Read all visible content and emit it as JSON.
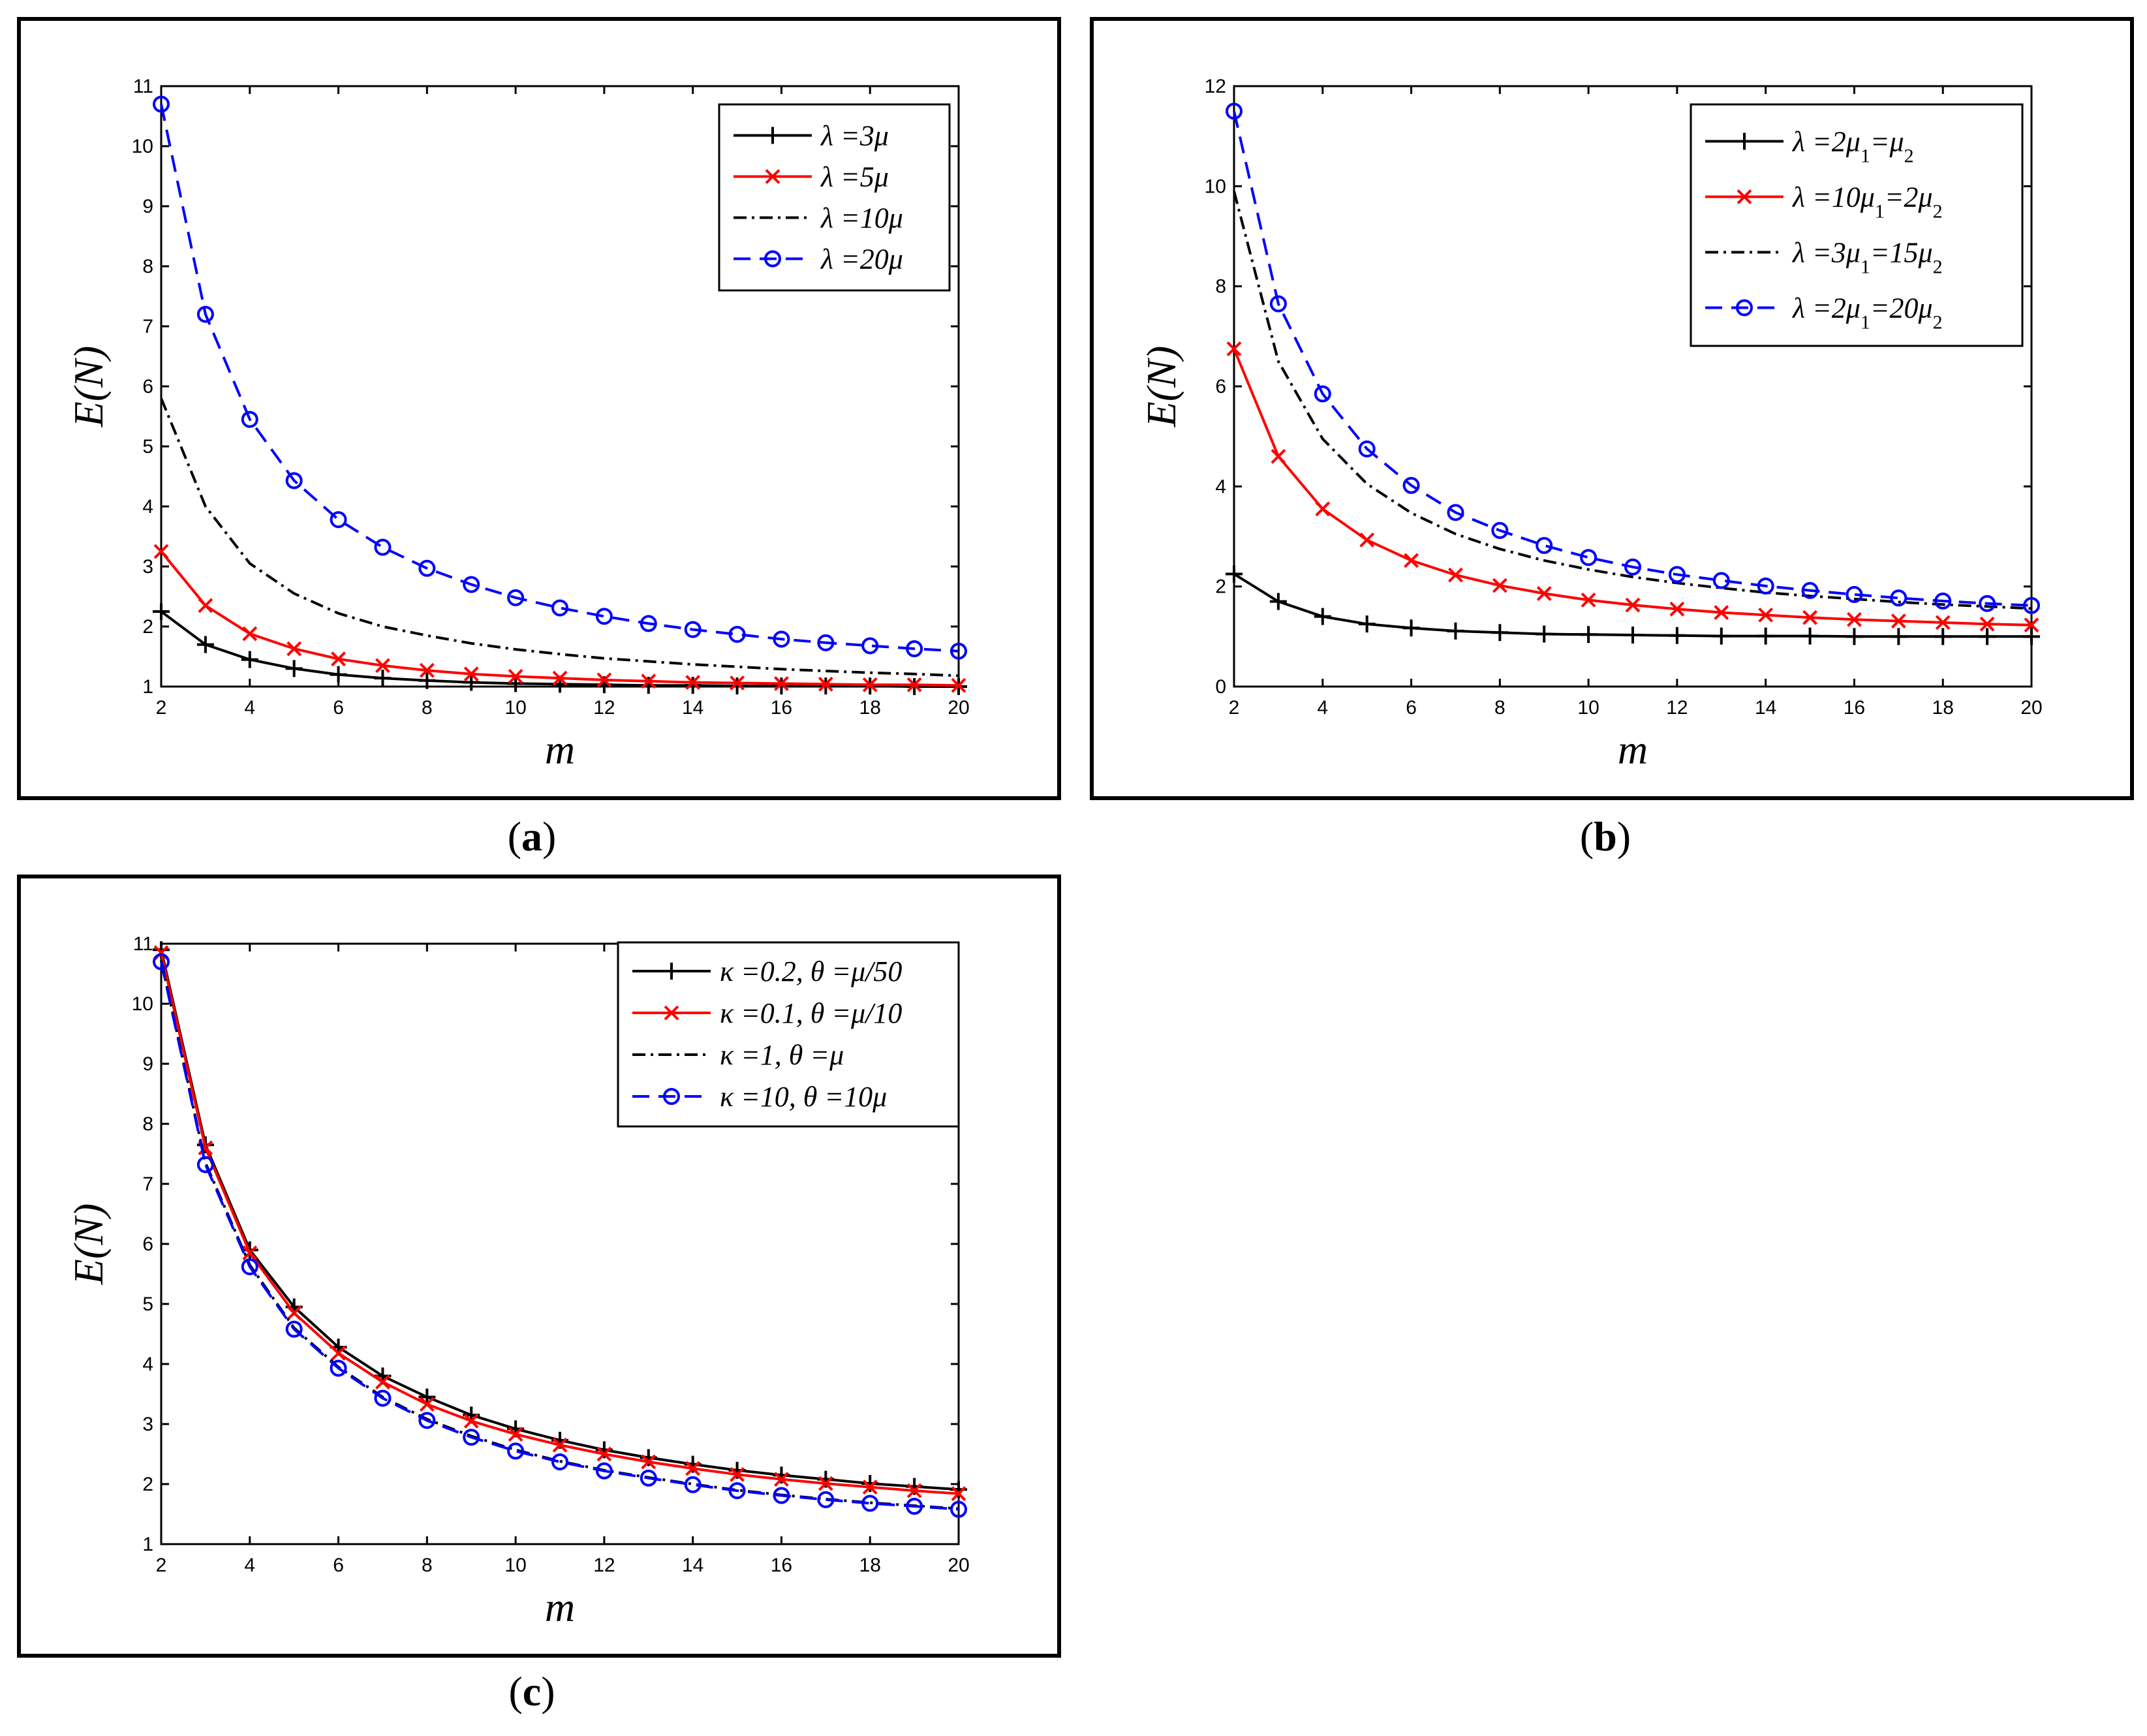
{
  "captions": {
    "a": "a",
    "b": "b",
    "c": "c"
  },
  "chart_data": [
    {
      "id": "a",
      "type": "line",
      "title": "",
      "xlabel": "m",
      "ylabel": "E(N)",
      "xlim": [
        2,
        20
      ],
      "ylim": [
        1,
        11
      ],
      "xticks": [
        2,
        4,
        6,
        8,
        10,
        12,
        14,
        16,
        18,
        20
      ],
      "yticks": [
        1,
        2,
        3,
        4,
        5,
        6,
        7,
        8,
        9,
        10,
        11
      ],
      "legend_position": "top-right",
      "x": [
        2,
        3,
        4,
        5,
        6,
        7,
        8,
        9,
        10,
        11,
        12,
        13,
        14,
        15,
        16,
        17,
        18,
        19,
        20
      ],
      "series": [
        {
          "name": "λ =3μ",
          "color": "#000000",
          "marker": "plus",
          "dash": "solid",
          "values": [
            2.25,
            1.7,
            1.45,
            1.3,
            1.2,
            1.14,
            1.1,
            1.07,
            1.05,
            1.04,
            1.03,
            1.02,
            1.02,
            1.01,
            1.01,
            1.01,
            1.01,
            1.0,
            1.0
          ]
        },
        {
          "name": "λ =5μ",
          "color": "#ff0000",
          "marker": "x",
          "dash": "solid",
          "values": [
            3.25,
            2.35,
            1.88,
            1.63,
            1.46,
            1.35,
            1.27,
            1.21,
            1.17,
            1.14,
            1.11,
            1.09,
            1.07,
            1.06,
            1.05,
            1.04,
            1.03,
            1.03,
            1.02
          ]
        },
        {
          "name": "λ =10μ",
          "color": "#000000",
          "marker": "none",
          "dash": "dashdot",
          "values": [
            5.8,
            4.0,
            3.05,
            2.55,
            2.22,
            2.0,
            1.85,
            1.72,
            1.62,
            1.54,
            1.47,
            1.42,
            1.37,
            1.33,
            1.29,
            1.26,
            1.23,
            1.21,
            1.18
          ]
        },
        {
          "name": "λ =20μ",
          "color": "#0000ff",
          "marker": "circle",
          "dash": "dashed",
          "values": [
            10.7,
            7.2,
            5.45,
            4.43,
            3.78,
            3.32,
            2.97,
            2.7,
            2.48,
            2.31,
            2.17,
            2.05,
            1.95,
            1.87,
            1.79,
            1.73,
            1.68,
            1.63,
            1.59
          ]
        }
      ]
    },
    {
      "id": "b",
      "type": "line",
      "title": "",
      "xlabel": "m",
      "ylabel": "E(N)",
      "xlim": [
        2,
        20
      ],
      "ylim": [
        0,
        12
      ],
      "xticks": [
        2,
        4,
        6,
        8,
        10,
        12,
        14,
        16,
        18,
        20
      ],
      "yticks": [
        0,
        2,
        4,
        6,
        8,
        10,
        12
      ],
      "legend_position": "top-right",
      "x": [
        2,
        3,
        4,
        5,
        6,
        7,
        8,
        9,
        10,
        11,
        12,
        13,
        14,
        15,
        16,
        17,
        18,
        19,
        20
      ],
      "series": [
        {
          "name": "λ =2μ1=μ2",
          "color": "#000000",
          "marker": "plus",
          "dash": "solid",
          "values": [
            2.25,
            1.7,
            1.4,
            1.25,
            1.17,
            1.11,
            1.08,
            1.05,
            1.04,
            1.03,
            1.02,
            1.01,
            1.01,
            1.01,
            1.0,
            1.0,
            1.0,
            1.0,
            1.0
          ]
        },
        {
          "name": "λ =10μ1=2μ2",
          "color": "#ff0000",
          "marker": "x",
          "dash": "solid",
          "values": [
            6.75,
            4.6,
            3.55,
            2.93,
            2.52,
            2.23,
            2.02,
            1.86,
            1.73,
            1.63,
            1.55,
            1.48,
            1.43,
            1.38,
            1.34,
            1.31,
            1.28,
            1.25,
            1.23
          ]
        },
        {
          "name": "λ =3μ1=15μ2",
          "color": "#000000",
          "marker": "none",
          "dash": "dashdot",
          "values": [
            9.9,
            6.5,
            4.95,
            4.05,
            3.47,
            3.05,
            2.75,
            2.52,
            2.34,
            2.19,
            2.07,
            1.97,
            1.88,
            1.81,
            1.75,
            1.69,
            1.64,
            1.6,
            1.56
          ]
        },
        {
          "name": "λ =2μ1=20μ2",
          "color": "#0000ff",
          "marker": "circle",
          "dash": "dashed",
          "values": [
            11.5,
            7.65,
            5.85,
            4.75,
            4.02,
            3.48,
            3.12,
            2.82,
            2.58,
            2.39,
            2.24,
            2.12,
            2.01,
            1.92,
            1.84,
            1.77,
            1.71,
            1.66,
            1.62
          ]
        }
      ]
    },
    {
      "id": "c",
      "type": "line",
      "title": "",
      "xlabel": "m",
      "ylabel": "E(N)",
      "xlim": [
        2,
        20
      ],
      "ylim": [
        1,
        11
      ],
      "xticks": [
        2,
        4,
        6,
        8,
        10,
        12,
        14,
        16,
        18,
        20
      ],
      "yticks": [
        1,
        2,
        3,
        4,
        5,
        6,
        7,
        8,
        9,
        10,
        11
      ],
      "legend_position": "top-right",
      "x": [
        2,
        3,
        4,
        5,
        6,
        7,
        8,
        9,
        10,
        11,
        12,
        13,
        14,
        15,
        16,
        17,
        18,
        19,
        20
      ],
      "series": [
        {
          "name": "κ =0.2, θ =μ/50",
          "color": "#000000",
          "marker": "plus",
          "dash": "solid",
          "values": [
            10.9,
            7.65,
            5.9,
            4.95,
            4.28,
            3.8,
            3.45,
            3.15,
            2.92,
            2.73,
            2.57,
            2.44,
            2.33,
            2.23,
            2.15,
            2.08,
            2.01,
            1.96,
            1.91
          ]
        },
        {
          "name": "κ =0.1, θ =μ/10",
          "color": "#ff0000",
          "marker": "x",
          "dash": "solid",
          "values": [
            10.85,
            7.6,
            5.85,
            4.85,
            4.18,
            3.7,
            3.33,
            3.05,
            2.83,
            2.65,
            2.5,
            2.37,
            2.26,
            2.16,
            2.08,
            2.01,
            1.95,
            1.89,
            1.84
          ]
        },
        {
          "name": "κ =1, θ =μ",
          "color": "#000000",
          "marker": "none",
          "dash": "dashdot",
          "values": [
            10.72,
            7.35,
            5.65,
            4.6,
            3.95,
            3.45,
            3.08,
            2.8,
            2.57,
            2.38,
            2.23,
            2.11,
            2.0,
            1.9,
            1.82,
            1.75,
            1.69,
            1.64,
            1.59
          ]
        },
        {
          "name": "κ =10, θ =10μ",
          "color": "#0000ff",
          "marker": "circle",
          "dash": "dashed",
          "values": [
            10.7,
            7.32,
            5.62,
            4.58,
            3.93,
            3.43,
            3.06,
            2.78,
            2.55,
            2.37,
            2.22,
            2.1,
            1.99,
            1.89,
            1.81,
            1.74,
            1.68,
            1.63,
            1.58
          ]
        }
      ]
    }
  ]
}
